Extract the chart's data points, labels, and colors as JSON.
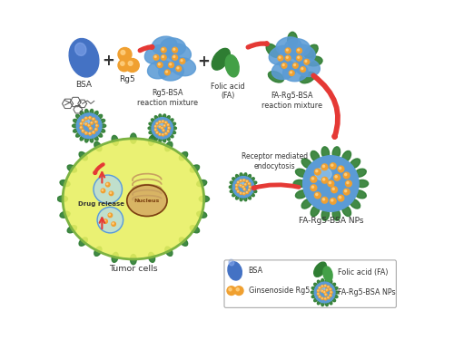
{
  "fig_width": 5.0,
  "fig_height": 3.75,
  "dpi": 100,
  "labels": {
    "BSA": "BSA",
    "Rg5": "Rg5",
    "rg5_bsa": "Rg5-BSA\nreaction mixture",
    "folic_acid": "Folic acid\n(FA)",
    "fa_rg5_bsa_mix": "FA-Rg5-BSA\nreaction mixture",
    "fa_rg5_bsa_nps": "FA-Rg5-BSA NPs",
    "receptor": "Receptor mediated\nendocytosis",
    "drug_release": "Drug release",
    "nucleus": "Nucleus",
    "tumor_cells": "Tumor cells",
    "legend_bsa": "BSA",
    "legend_grg5": "Ginsenoside Rg5",
    "legend_fa": "Folic acid (FA)",
    "legend_nps": "FA-Rg5-BSA NPs"
  },
  "colors": {
    "bsa_blue": "#4472C4",
    "bsa_blue_light": "#88AAEE",
    "rg5_orange": "#F0A030",
    "rg5_highlight": "#FFD080",
    "fa_green": "#2E7D32",
    "fa_green_light": "#43A047",
    "np_blue": "#5B9BD5",
    "np_light": "#AED6F1",
    "cell_yellow": "#E8F060",
    "cell_green": "#7CB342",
    "arrow_red": "#E53935",
    "nuc_brown": "#7B4010",
    "nuc_light": "#D2A060",
    "golgi_tan": "#C8A060",
    "endo_blue": "#B0D8F0",
    "text": "#333333",
    "white": "#FFFFFF",
    "gray": "#AAAAAA"
  }
}
